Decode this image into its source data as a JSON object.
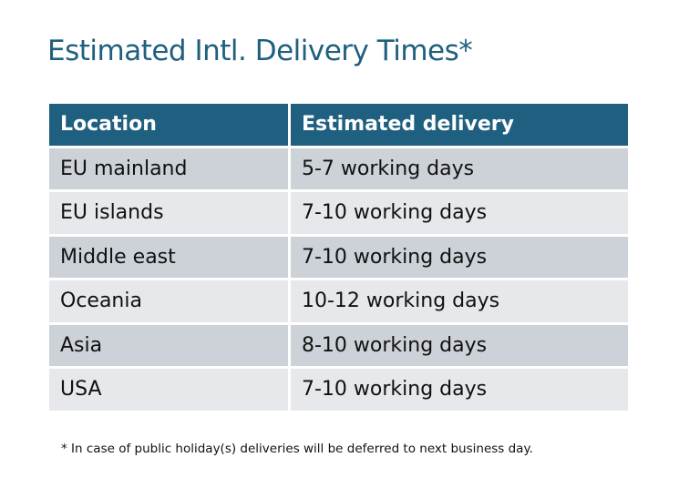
{
  "title": "Estimated Intl. Delivery Times*",
  "table": {
    "headers": [
      "Location",
      "Estimated delivery"
    ],
    "rows": [
      [
        "EU mainland",
        "5-7 working days"
      ],
      [
        "EU islands",
        "7-10 working days"
      ],
      [
        "Middle east",
        "7-10 working days"
      ],
      [
        "Oceania",
        "10-12 working days"
      ],
      [
        "Asia",
        "8-10 working days"
      ],
      [
        "USA",
        "7-10 working days"
      ]
    ]
  },
  "footnote": "* In case of public holiday(s) deliveries will be deferred to next business day.",
  "colors": {
    "header": "#1f6080",
    "row_dark": "#cdd1d8",
    "row_light": "#e6e8eb",
    "title": "#1f5f7f"
  }
}
